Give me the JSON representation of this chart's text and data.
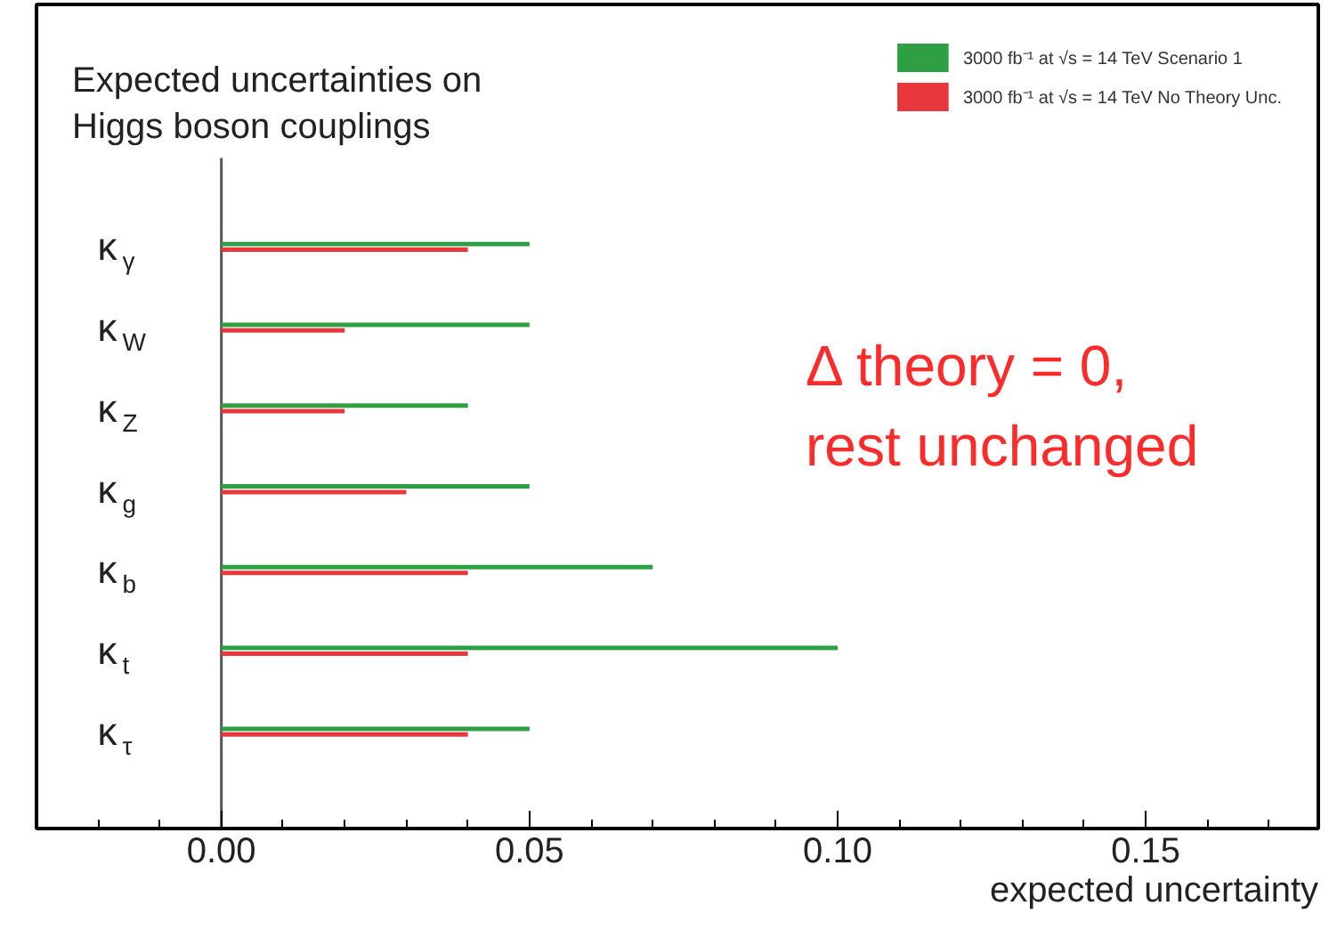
{
  "chart_data": {
    "type": "bar",
    "orientation": "horizontal",
    "title": "Expected uncertainties on\nHiggs boson couplings",
    "xlabel": "expected uncertainty",
    "categories": [
      "κ$_{γ}$",
      "κ$_{W}$",
      "κ$_{Z}$",
      "κ$_{g}$",
      "κ$_{b}$",
      "κ$_{t}$",
      "κ$_{τ}$"
    ],
    "series": [
      {
        "name": "3000 fb⁻¹ at √s = 14 TeV Scenario 1",
        "color": "#2ea043",
        "values": [
          0.05,
          0.05,
          0.04,
          0.05,
          0.07,
          0.1,
          0.05
        ]
      },
      {
        "name": "3000 fb⁻¹ at √s = 14 TeV No Theory Unc.",
        "color": "#e8383d",
        "values": [
          0.04,
          0.02,
          0.02,
          0.03,
          0.04,
          0.04,
          0.04
        ]
      }
    ],
    "xlim": [
      -0.03,
      0.178
    ],
    "xticks": [
      {
        "value": 0,
        "label": "0.00"
      },
      {
        "value": 0.05,
        "label": "0.05"
      },
      {
        "value": 0.1,
        "label": "0.10"
      },
      {
        "value": 0.15,
        "label": "0.15"
      }
    ],
    "ref_lines": [
      {
        "axis": "x",
        "value": 0,
        "color": "#555555"
      }
    ],
    "annotations": [
      "Δ theory = 0,\nrest unchanged"
    ],
    "legend": "top right",
    "grid": false
  }
}
